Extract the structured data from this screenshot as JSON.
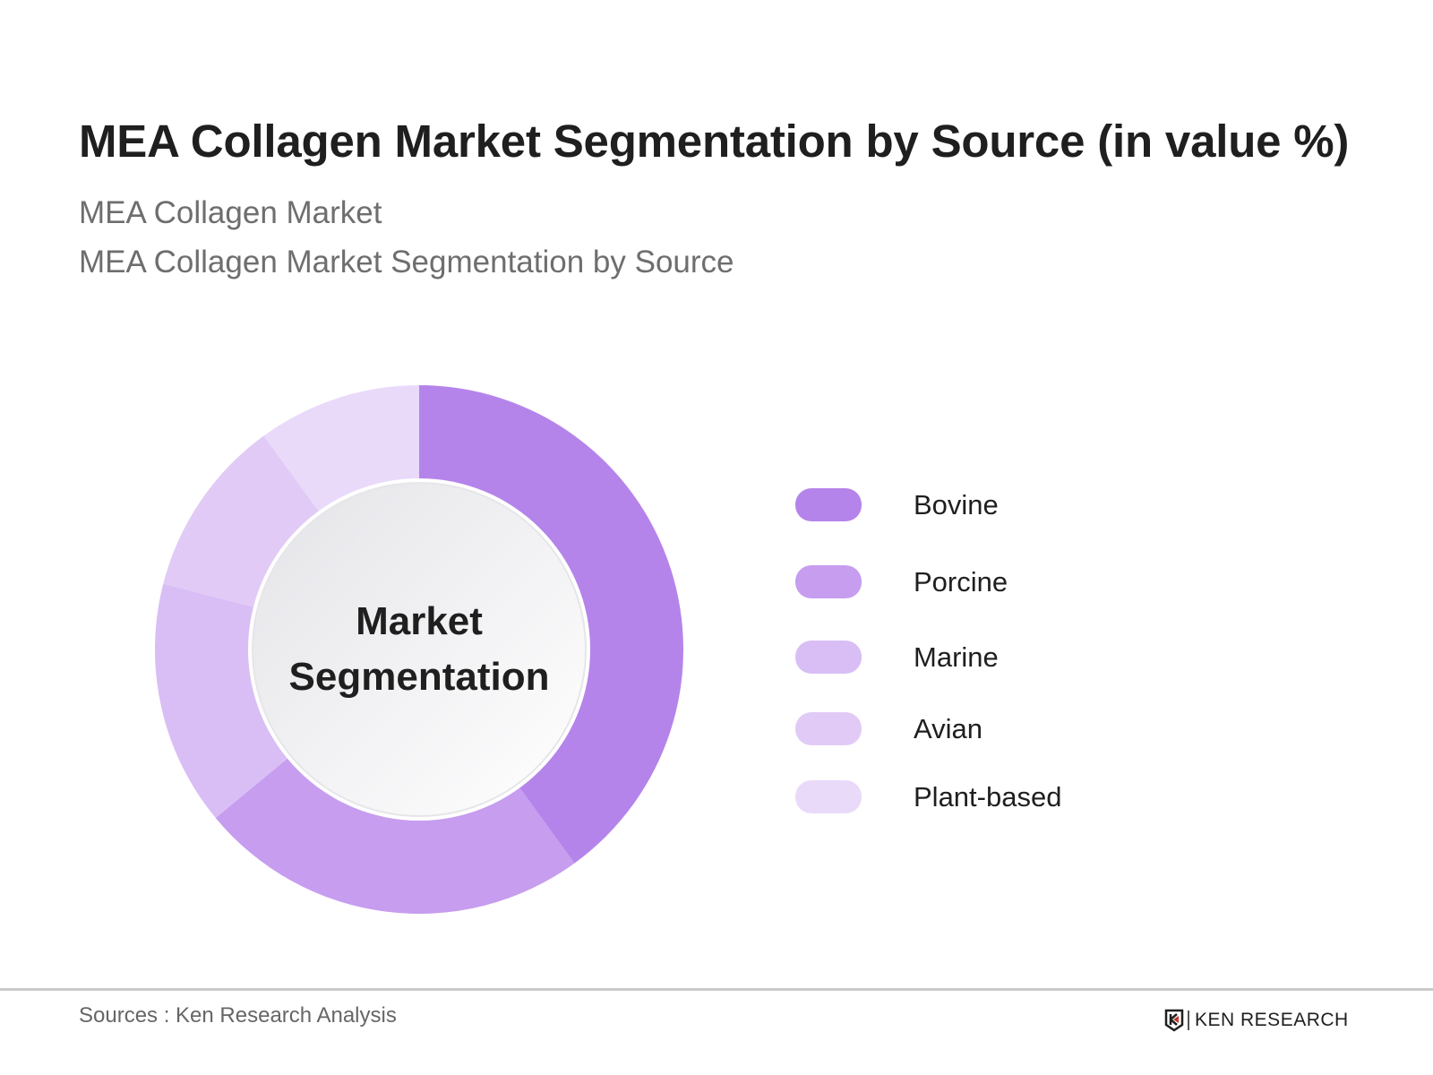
{
  "header": {
    "title": "MEA Collagen Market Segmentation by Source (in value %)",
    "subtitle_line1": "MEA Collagen Market",
    "subtitle_line2": "MEA Collagen Market Segmentation by Source"
  },
  "donut": {
    "center_line1": "Market",
    "center_line2": "Segmentation"
  },
  "legend": {
    "items": [
      {
        "label": "Bovine",
        "color": "#b584ea"
      },
      {
        "label": "Porcine",
        "color": "#c69def"
      },
      {
        "label": "Marine",
        "color": "#d9bef5"
      },
      {
        "label": "Avian",
        "color": "#e1cbf6"
      },
      {
        "label": "Plant-based",
        "color": "#e9dafa"
      }
    ]
  },
  "footer": {
    "source": "Sources : Ken Research Analysis",
    "logo_text": "KEN RESEARCH",
    "logo_icon": "ken-research-k-icon"
  },
  "chart_data": {
    "type": "pie",
    "subtype": "donut",
    "title": "MEA Collagen Market Segmentation by Source (in value %)",
    "subtitle": "MEA Collagen Market Segmentation by Source",
    "center_label": "Market Segmentation",
    "categories": [
      "Bovine",
      "Porcine",
      "Marine",
      "Avian",
      "Plant-based"
    ],
    "values": [
      40,
      24,
      15,
      11,
      10
    ],
    "unit": "%",
    "colors": [
      "#b584ea",
      "#c69def",
      "#d9bef5",
      "#e1cbf6",
      "#e9dafa"
    ],
    "start_angle": "12 o'clock, clockwise",
    "legend_position": "right",
    "data_labels": false,
    "source": "Sources : Ken Research Analysis"
  }
}
